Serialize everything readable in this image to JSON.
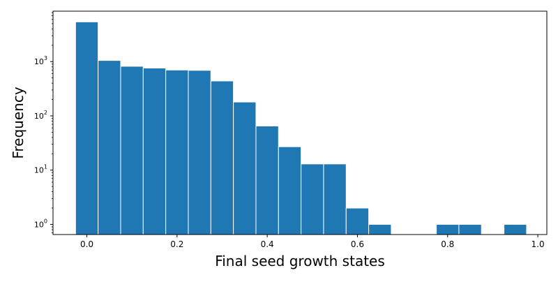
{
  "chart_data": {
    "type": "bar",
    "xlabel": "Final seed growth states",
    "ylabel": "Frequency",
    "yscale": "log",
    "xlim": [
      -0.075,
      1.02
    ],
    "ylim": [
      0.65,
      8500
    ],
    "grid": false,
    "bar_color": "#1f77b4",
    "bin_width": 0.05,
    "bins": [
      {
        "center": 0.0,
        "count": 5400
      },
      {
        "center": 0.05,
        "count": 1050
      },
      {
        "center": 0.1,
        "count": 820
      },
      {
        "center": 0.15,
        "count": 760
      },
      {
        "center": 0.2,
        "count": 700
      },
      {
        "center": 0.25,
        "count": 690
      },
      {
        "center": 0.3,
        "count": 440
      },
      {
        "center": 0.35,
        "count": 180
      },
      {
        "center": 0.4,
        "count": 65
      },
      {
        "center": 0.45,
        "count": 27
      },
      {
        "center": 0.5,
        "count": 13
      },
      {
        "center": 0.55,
        "count": 13
      },
      {
        "center": 0.6,
        "count": 2
      },
      {
        "center": 0.65,
        "count": 1
      },
      {
        "center": 0.7,
        "count": 0
      },
      {
        "center": 0.75,
        "count": 0
      },
      {
        "center": 0.8,
        "count": 1
      },
      {
        "center": 0.85,
        "count": 1
      },
      {
        "center": 0.9,
        "count": 0
      },
      {
        "center": 0.95,
        "count": 1
      }
    ],
    "x_ticks": [
      {
        "value": 0.0,
        "label": "0.0"
      },
      {
        "value": 0.2,
        "label": "0.2"
      },
      {
        "value": 0.4,
        "label": "0.4"
      },
      {
        "value": 0.6,
        "label": "0.6"
      },
      {
        "value": 0.8,
        "label": "0.8"
      },
      {
        "value": 1.0,
        "label": "1.0"
      }
    ],
    "y_ticks": [
      {
        "value": 1,
        "base": "10",
        "exp": "0"
      },
      {
        "value": 10,
        "base": "10",
        "exp": "1"
      },
      {
        "value": 100,
        "base": "10",
        "exp": "2"
      },
      {
        "value": 1000,
        "base": "10",
        "exp": "3"
      }
    ]
  }
}
